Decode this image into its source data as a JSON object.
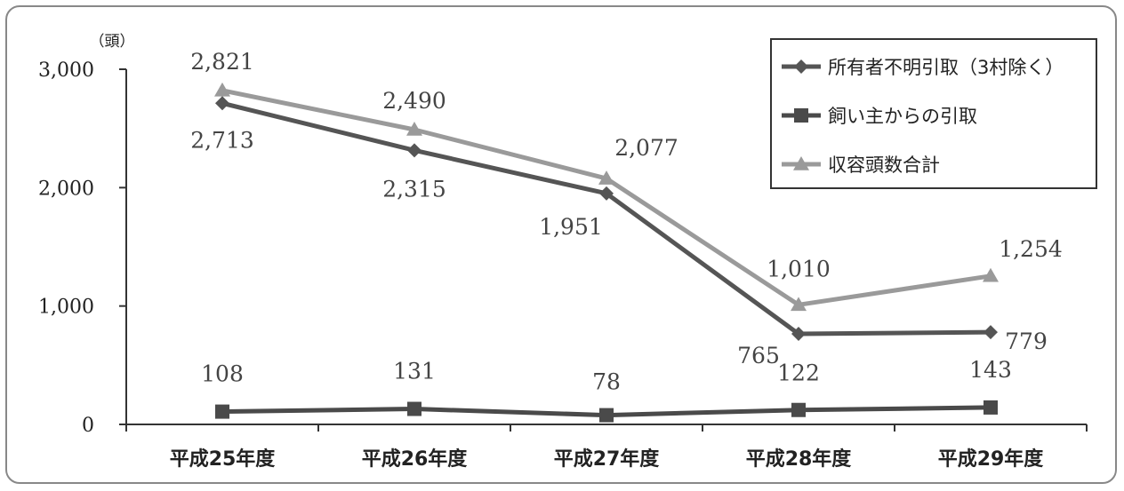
{
  "chart_data": {
    "type": "line",
    "title": "",
    "xlabel": "",
    "ylabel": "（頭）",
    "categories": [
      "平成25年度",
      "平成26年度",
      "平成27年度",
      "平成28年度",
      "平成29年度"
    ],
    "ylim": [
      0,
      3000
    ],
    "yticks": [
      "0",
      "1,000",
      "2,000",
      "3,000"
    ],
    "ytick_values": [
      0,
      1000,
      2000,
      3000
    ],
    "grid": false,
    "legend_position": "top-right",
    "series": [
      {
        "name": "所有者不明引取（3村除く）",
        "values": [
          2713,
          2315,
          1951,
          765,
          779
        ],
        "labels": [
          "2,713",
          "2,315",
          "1,951",
          "765",
          "779"
        ],
        "color": "#555555",
        "marker": "diamond"
      },
      {
        "name": "飼い主からの引取",
        "values": [
          108,
          131,
          78,
          122,
          143
        ],
        "labels": [
          "108",
          "131",
          "78",
          "122",
          "143"
        ],
        "color": "#4a4a4a",
        "marker": "square"
      },
      {
        "name": "収容頭数合計",
        "values": [
          2821,
          2490,
          2077,
          1010,
          1254
        ],
        "labels": [
          "2,821",
          "2,490",
          "2,077",
          "1,010",
          "1,254"
        ],
        "color": "#9a9a9a",
        "marker": "triangle"
      }
    ]
  }
}
